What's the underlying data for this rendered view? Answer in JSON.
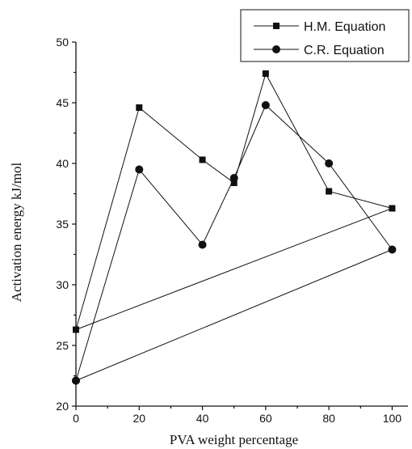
{
  "chart_data": {
    "type": "line",
    "title": "",
    "xlabel": "PVA weight percentage",
    "ylabel": "Activation energy kJ/mol",
    "xlim": [
      0,
      105
    ],
    "ylim": [
      20,
      50
    ],
    "xticks": [
      0,
      20,
      40,
      60,
      80,
      100
    ],
    "yticks": [
      20,
      25,
      30,
      35,
      40,
      45,
      50
    ],
    "grid": false,
    "legend_position": "top-right",
    "series": [
      {
        "name": "H.M. Equation",
        "marker": "square",
        "color": "#111111",
        "x": [
          0,
          20,
          40,
          50,
          60,
          80,
          100,
          0
        ],
        "y": [
          26.3,
          44.6,
          40.3,
          38.4,
          47.4,
          37.7,
          36.3,
          26.3
        ]
      },
      {
        "name": "C.R. Equation",
        "marker": "circle",
        "color": "#111111",
        "x": [
          0,
          20,
          40,
          50,
          60,
          80,
          100,
          0
        ],
        "y": [
          22.1,
          39.5,
          33.3,
          38.8,
          44.8,
          40.0,
          32.9,
          22.1
        ]
      }
    ]
  }
}
